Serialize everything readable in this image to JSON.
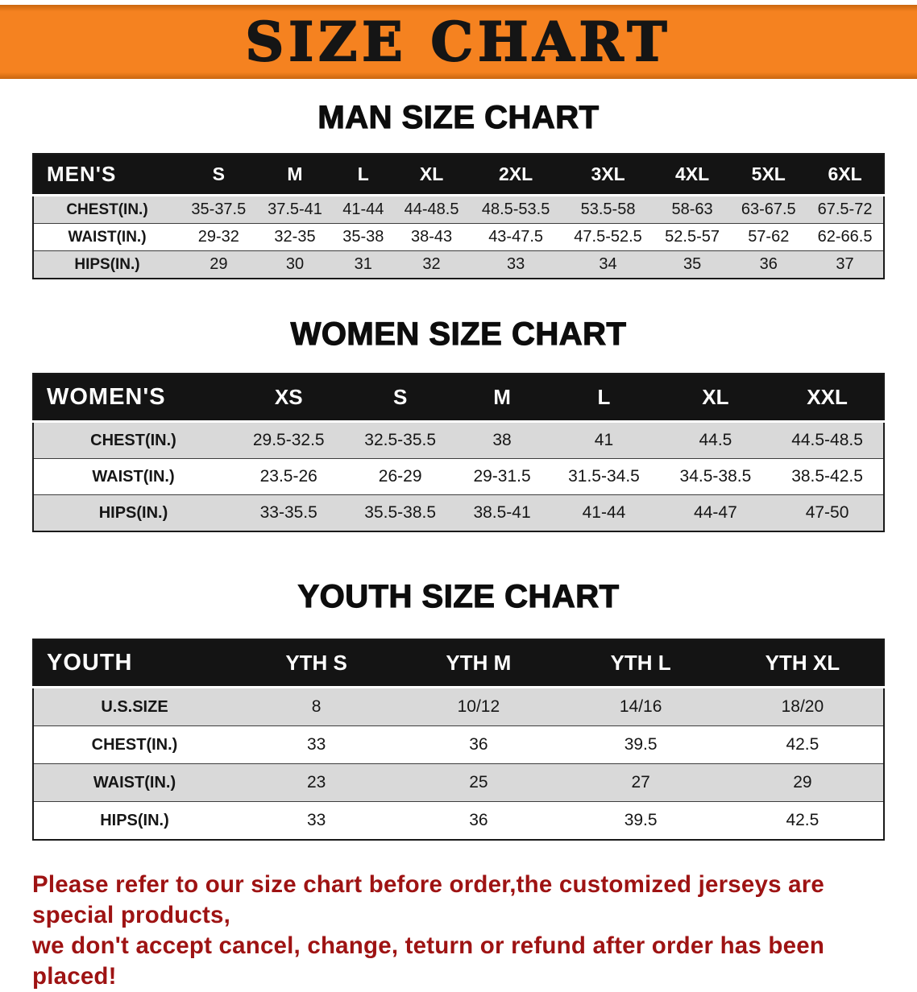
{
  "banner": {
    "title": "SIZE CHART"
  },
  "sections": [
    {
      "heading": "MAN SIZE CHART",
      "table": {
        "header": [
          "MEN'S",
          "S",
          "M",
          "L",
          "XL",
          "2XL",
          "3XL",
          "4XL",
          "5XL",
          "6XL"
        ],
        "rows": [
          {
            "label": "CHEST(IN.)",
            "values": [
              "35-37.5",
              "37.5-41",
              "41-44",
              "44-48.5",
              "48.5-53.5",
              "53.5-58",
              "58-63",
              "63-67.5",
              "67.5-72"
            ]
          },
          {
            "label": "WAIST(IN.)",
            "values": [
              "29-32",
              "32-35",
              "35-38",
              "38-43",
              "43-47.5",
              "47.5-52.5",
              "52.5-57",
              "57-62",
              "62-66.5"
            ]
          },
          {
            "label": "HIPS(IN.)",
            "values": [
              "29",
              "30",
              "31",
              "32",
              "33",
              "34",
              "35",
              "36",
              "37"
            ]
          }
        ]
      }
    },
    {
      "heading": "WOMEN SIZE CHART",
      "table": {
        "header": [
          "WOMEN'S",
          "XS",
          "S",
          "M",
          "L",
          "XL",
          "XXL"
        ],
        "rows": [
          {
            "label": "CHEST(IN.)",
            "values": [
              "29.5-32.5",
              "32.5-35.5",
              "38",
              "41",
              "44.5",
              "44.5-48.5"
            ]
          },
          {
            "label": "WAIST(IN.)",
            "values": [
              "23.5-26",
              "26-29",
              "29-31.5",
              "31.5-34.5",
              "34.5-38.5",
              "38.5-42.5"
            ]
          },
          {
            "label": "HIPS(IN.)",
            "values": [
              "33-35.5",
              "35.5-38.5",
              "38.5-41",
              "41-44",
              "44-47",
              "47-50"
            ]
          }
        ]
      }
    },
    {
      "heading": "YOUTH SIZE CHART",
      "table": {
        "header": [
          "YOUTH",
          "YTH S",
          "YTH M",
          "YTH L",
          "YTH XL"
        ],
        "rows": [
          {
            "label": "U.S.SIZE",
            "values": [
              "8",
              "10/12",
              "14/16",
              "18/20"
            ]
          },
          {
            "label": "CHEST(IN.)",
            "values": [
              "33",
              "36",
              "39.5",
              "42.5"
            ]
          },
          {
            "label": "WAIST(IN.)",
            "values": [
              "23",
              "25",
              "27",
              "29"
            ]
          },
          {
            "label": "HIPS(IN.)",
            "values": [
              "33",
              "36",
              "39.5",
              "42.5"
            ]
          }
        ]
      }
    }
  ],
  "disclaimer": {
    "line1": "Please refer to our size chart before order,the customized jerseys are special products,",
    "line2": "we don't accept cancel, change, teturn or refund after order has been placed!"
  },
  "colors": {
    "banner_bg": "#F58220",
    "table_header_bg": "#141414",
    "row_alt_bg": "#D9D9D9",
    "disclaimer_text": "#9E1313"
  }
}
